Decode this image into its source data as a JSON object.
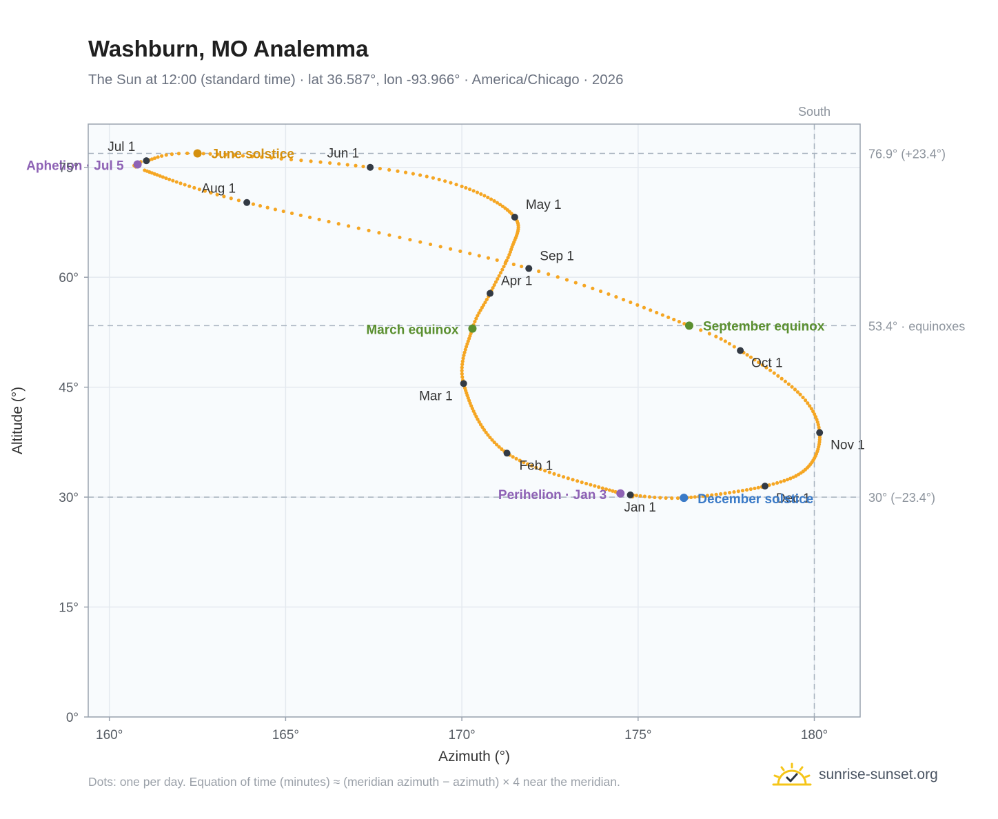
{
  "title": "Washburn, MO Analemma",
  "subtitle": "The Sun at 12:00 (standard time) · lat 36.587°, lon -93.966° · America/Chicago · 2026",
  "footer_note": "Dots: one per day. Equation of time (minutes) ≈ (meridian azimuth − azimuth) × 4 near the meridian.",
  "brand": {
    "name": "sunrise-sunset.org",
    "logo_icon": "sun-check-icon",
    "logo_color": "#f5c518"
  },
  "colors": {
    "curve": "#f5a623",
    "month_marker": "#333a44",
    "solstice_june": "#d4900e",
    "solstice_december": "#3a7ac7",
    "equinox": "#5a8f2f",
    "apsis": "#8e62b5",
    "reference_line": "#a7b2bf",
    "plot_background": "#f8fbfd",
    "grid": "#e4e9ef",
    "frame": "#9aa3af"
  },
  "chart_data": {
    "type": "scatter",
    "title": "Washburn, MO Analemma",
    "xlabel": "Azimuth (°)",
    "ylabel": "Altitude (°)",
    "xlim": [
      159.4,
      181.3
    ],
    "ylim": [
      0,
      80.9
    ],
    "x_ticks": [
      160,
      165,
      170,
      175,
      180
    ],
    "x_tick_labels": [
      "160°",
      "165°",
      "170°",
      "175°",
      "180°"
    ],
    "y_ticks": [
      0,
      15,
      30,
      45,
      60,
      75
    ],
    "y_tick_labels": [
      "0°",
      "15°",
      "30°",
      "45°",
      "60°",
      "75°"
    ],
    "grid": true,
    "series": [
      {
        "type": "daily-dots",
        "anchors": [
          {
            "day": 0,
            "az": 174.78,
            "alt": 30.3
          },
          {
            "day": 2,
            "az": 174.5,
            "alt": 30.5
          },
          {
            "day": 31,
            "az": 171.28,
            "alt": 36.0
          },
          {
            "day": 59,
            "az": 170.05,
            "alt": 45.5
          },
          {
            "day": 78,
            "az": 170.3,
            "alt": 53.0
          },
          {
            "day": 90,
            "az": 170.8,
            "alt": 57.8
          },
          {
            "day": 105,
            "az": 171.4,
            "alt": 63.8
          },
          {
            "day": 120,
            "az": 171.5,
            "alt": 68.2
          },
          {
            "day": 138,
            "az": 170.0,
            "alt": 72.4
          },
          {
            "day": 151,
            "az": 167.4,
            "alt": 75.0
          },
          {
            "day": 171,
            "az": 162.5,
            "alt": 76.9
          },
          {
            "day": 181,
            "az": 161.05,
            "alt": 75.9
          },
          {
            "day": 185,
            "az": 160.8,
            "alt": 75.4
          },
          {
            "day": 189,
            "az": 161.0,
            "alt": 74.6
          },
          {
            "day": 212,
            "az": 163.9,
            "alt": 70.2
          },
          {
            "day": 243,
            "az": 171.9,
            "alt": 61.2
          },
          {
            "day": 265,
            "az": 176.45,
            "alt": 53.4
          },
          {
            "day": 273,
            "az": 177.9,
            "alt": 50.0
          },
          {
            "day": 290,
            "az": 179.6,
            "alt": 44.0
          },
          {
            "day": 304,
            "az": 180.15,
            "alt": 38.8
          },
          {
            "day": 320,
            "az": 179.8,
            "alt": 34.0
          },
          {
            "day": 334,
            "az": 178.6,
            "alt": 31.5
          },
          {
            "day": 354,
            "az": 176.3,
            "alt": 29.9
          },
          {
            "day": 365,
            "az": 174.78,
            "alt": 30.3
          }
        ]
      }
    ],
    "month_markers": [
      {
        "label": "Jan 1",
        "az": 174.78,
        "alt": 30.3,
        "anchor": "middle",
        "dx": 14,
        "dy": 24
      },
      {
        "label": "Feb 1",
        "az": 171.28,
        "alt": 36.0,
        "anchor": "start",
        "dx": 18,
        "dy": 24
      },
      {
        "label": "Mar 1",
        "az": 170.05,
        "alt": 45.5,
        "anchor": "end",
        "dx": -16,
        "dy": 24
      },
      {
        "label": "Apr 1",
        "az": 170.8,
        "alt": 57.8,
        "anchor": "start",
        "dx": 16,
        "dy": -12
      },
      {
        "label": "May 1",
        "az": 171.5,
        "alt": 68.2,
        "anchor": "start",
        "dx": 16,
        "dy": -12
      },
      {
        "label": "Jun 1",
        "az": 167.4,
        "alt": 75.0,
        "anchor": "end",
        "dx": -16,
        "dy": -14
      },
      {
        "label": "Jul 1",
        "az": 161.05,
        "alt": 75.9,
        "anchor": "end",
        "dx": -16,
        "dy": -14
      },
      {
        "label": "Aug 1",
        "az": 163.9,
        "alt": 70.2,
        "anchor": "end",
        "dx": -16,
        "dy": -14
      },
      {
        "label": "Sep 1",
        "az": 171.9,
        "alt": 61.2,
        "anchor": "start",
        "dx": 16,
        "dy": -12
      },
      {
        "label": "Oct 1",
        "az": 177.9,
        "alt": 50.0,
        "anchor": "start",
        "dx": 16,
        "dy": 24
      },
      {
        "label": "Nov 1",
        "az": 180.15,
        "alt": 38.8,
        "anchor": "start",
        "dx": 16,
        "dy": 24
      },
      {
        "label": "Dec 1",
        "az": 178.6,
        "alt": 31.5,
        "anchor": "start",
        "dx": 16,
        "dy": 24
      }
    ],
    "events": [
      {
        "label": "June solstice",
        "az": 162.5,
        "alt": 76.9,
        "color": "#d4900e",
        "anchor": "start",
        "dx": 20,
        "dy": 7
      },
      {
        "label": "December solstice",
        "az": 176.3,
        "alt": 29.9,
        "color": "#3a7ac7",
        "anchor": "start",
        "dx": 20,
        "dy": 8
      },
      {
        "label": "March equinox",
        "az": 170.3,
        "alt": 53.0,
        "color": "#5a8f2f",
        "anchor": "end",
        "dx": -20,
        "dy": 8
      },
      {
        "label": "September equinox",
        "az": 176.45,
        "alt": 53.4,
        "color": "#5a8f2f",
        "anchor": "start",
        "dx": 20,
        "dy": 7
      },
      {
        "label": "Aphelion · Jul 5",
        "az": 160.8,
        "alt": 75.4,
        "color": "#8e62b5",
        "anchor": "end",
        "dx": -20,
        "dy": 8
      },
      {
        "label": "Perihelion · Jan 3",
        "az": 174.5,
        "alt": 30.5,
        "color": "#8e62b5",
        "anchor": "end",
        "dx": -20,
        "dy": 8
      }
    ],
    "reference_lines": [
      {
        "axis": "y",
        "value": 76.9,
        "label": "76.9° (+23.4°)"
      },
      {
        "axis": "y",
        "value": 53.4,
        "label": "53.4° · equinoxes"
      },
      {
        "axis": "y",
        "value": 30.0,
        "label": "30° (−23.4°)"
      },
      {
        "axis": "x",
        "value": 180,
        "label": "South"
      }
    ]
  }
}
